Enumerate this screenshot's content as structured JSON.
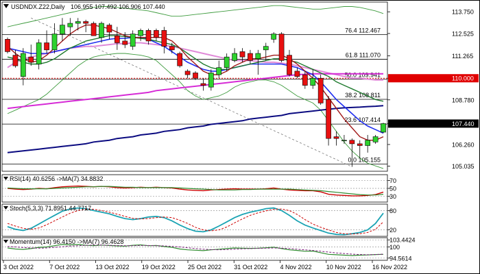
{
  "chart_data": [
    {
      "type": "candlestick",
      "title": "USDNDX.Z22,Daily",
      "ohlc_header": "106.955 107.492 106.906 107.440",
      "y_ticks": [
        "113.750",
        "112.525",
        "111.265",
        "110.000",
        "108.780",
        "107.440",
        "106.260",
        "105.035"
      ],
      "ylim": [
        104.75,
        114.3
      ],
      "last_price": "107.440",
      "highlight_level": "110.000",
      "x_labels": [
        "3 Oct 2022",
        "7 Oct 2022",
        "13 Oct 2022",
        "19 Oct 2022",
        "25 Oct 2022",
        "31 Oct 2022",
        "4 Nov 2022",
        "10 Nov 2022",
        "16 Nov 2022"
      ],
      "fib_levels": [
        {
          "label": "76.4 112.467",
          "value": 112.467
        },
        {
          "label": "61.8 111.070",
          "value": 111.07
        },
        {
          "label": "50.0 109.941",
          "value": 109.941
        },
        {
          "label": "38.2 108.811",
          "value": 108.811
        },
        {
          "label": "23.6 107.414",
          "value": 107.414
        },
        {
          "label": "0.0 105.155",
          "value": 105.155
        }
      ],
      "candles": [
        [
          112.2,
          112.3,
          111.4,
          111.5
        ],
        [
          111.3,
          111.6,
          110.6,
          110.7
        ],
        [
          110.1,
          111.7,
          109.6,
          111.4
        ],
        [
          111.2,
          111.9,
          110.7,
          110.9
        ],
        [
          110.8,
          112.2,
          110.5,
          112.0
        ],
        [
          112.0,
          112.7,
          111.4,
          111.6
        ],
        [
          111.6,
          113.1,
          111.4,
          112.5
        ],
        [
          112.5,
          113.4,
          112.1,
          113.0
        ],
        [
          112.9,
          113.4,
          112.4,
          113.1
        ],
        [
          113.1,
          113.4,
          112.7,
          113.2
        ],
        [
          113.2,
          113.3,
          112.6,
          113.1
        ],
        [
          113.1,
          113.2,
          112.4,
          112.4
        ],
        [
          112.3,
          113.2,
          112.0,
          113.1
        ],
        [
          113.0,
          113.1,
          112.2,
          112.6
        ],
        [
          112.4,
          112.9,
          111.6,
          112.0
        ],
        [
          112.1,
          112.6,
          111.7,
          111.9
        ],
        [
          111.8,
          112.7,
          111.6,
          112.5
        ],
        [
          112.4,
          112.8,
          112.1,
          112.7
        ],
        [
          112.7,
          112.8,
          111.9,
          112.1
        ],
        [
          112.7,
          112.8,
          112.1,
          112.3
        ],
        [
          112.7,
          112.9,
          111.4,
          111.8
        ],
        [
          111.8,
          112.0,
          111.4,
          111.6
        ],
        [
          111.4,
          111.5,
          110.6,
          110.7
        ],
        [
          110.4,
          110.5,
          110.0,
          110.2
        ],
        [
          110.3,
          110.4,
          109.9,
          110.0
        ],
        [
          109.7,
          110.0,
          109.3,
          109.6
        ],
        [
          109.5,
          110.5,
          109.3,
          110.3
        ],
        [
          110.2,
          111.0,
          110.0,
          110.6
        ],
        [
          110.6,
          111.4,
          110.4,
          111.2
        ],
        [
          111.0,
          111.7,
          110.9,
          111.4
        ],
        [
          111.5,
          111.7,
          110.9,
          111.2
        ],
        [
          111.4,
          111.6,
          110.8,
          111.0
        ],
        [
          111.1,
          111.6,
          110.2,
          111.4
        ],
        [
          111.6,
          112.0,
          111.0,
          111.8
        ],
        [
          112.2,
          112.6,
          112.0,
          112.5
        ],
        [
          112.5,
          112.6,
          110.9,
          111.0
        ],
        [
          111.3,
          111.6,
          110.1,
          110.2
        ],
        [
          110.4,
          110.6,
          110.0,
          110.1
        ],
        [
          110.2,
          110.4,
          109.4,
          109.6
        ],
        [
          109.6,
          110.5,
          109.4,
          110.0
        ],
        [
          110.0,
          110.2,
          108.5,
          108.6
        ],
        [
          108.8,
          109.0,
          106.2,
          106.6
        ],
        [
          106.7,
          107.0,
          106.2,
          106.6
        ],
        [
          106.5,
          106.8,
          106.3,
          106.5
        ],
        [
          106.5,
          106.6,
          105.0,
          106.3
        ],
        [
          106.3,
          106.5,
          105.5,
          106.2
        ],
        [
          106.2,
          106.8,
          105.8,
          106.5
        ],
        [
          106.4,
          106.8,
          106.3,
          106.7
        ],
        [
          106.955,
          107.492,
          106.906,
          107.44
        ]
      ],
      "overlays": {
        "ma_pink": [
          110.6,
          110.9,
          111.1,
          111.2,
          111.3,
          111.4,
          111.5,
          111.6,
          111.7,
          111.75,
          111.8,
          111.8,
          111.85,
          111.9,
          111.95,
          111.95,
          112.0,
          112.0,
          111.95,
          111.9,
          111.85,
          111.8,
          111.7,
          111.6,
          111.5,
          111.4,
          111.3,
          111.2,
          111.1,
          111.0,
          111.0,
          111.0,
          110.95,
          110.9,
          110.9,
          110.85,
          110.8,
          110.7,
          110.6,
          110.5,
          110.4,
          110.3,
          110.2,
          110.1,
          110.0,
          110.0,
          109.95,
          109.9,
          109.9
        ],
        "ma_magenta": [
          108.3,
          108.35,
          108.4,
          108.45,
          108.5,
          108.55,
          108.6,
          108.65,
          108.7,
          108.75,
          108.8,
          108.85,
          108.9,
          108.95,
          109.0,
          109.05,
          109.1,
          109.15,
          109.2,
          109.3,
          109.35,
          109.4,
          109.45,
          109.5,
          109.55,
          109.6,
          109.65,
          109.7,
          109.75,
          109.8,
          109.85,
          109.9,
          109.95,
          110.0,
          110.05,
          110.1,
          110.15,
          110.2,
          110.22,
          110.25,
          110.25,
          110.25,
          110.25,
          110.25,
          110.25,
          110.25,
          110.25,
          110.25,
          110.25
        ],
        "ma_navy": [
          105.8,
          105.85,
          105.9,
          105.95,
          106.0,
          106.05,
          106.1,
          106.15,
          106.2,
          106.25,
          106.3,
          106.4,
          106.45,
          106.5,
          106.6,
          106.65,
          106.7,
          106.8,
          106.85,
          106.9,
          107.0,
          107.05,
          107.1,
          107.2,
          107.25,
          107.3,
          107.4,
          107.45,
          107.5,
          107.55,
          107.6,
          107.7,
          107.75,
          107.8,
          107.85,
          107.9,
          108.0,
          108.05,
          108.1,
          108.15,
          108.2,
          108.25,
          108.3,
          108.33,
          108.35,
          108.37,
          108.4,
          108.42,
          108.45
        ],
        "ma_blue": [
          111.7,
          111.6,
          111.5,
          111.4,
          111.4,
          111.4,
          111.5,
          111.6,
          111.7,
          111.8,
          111.9,
          112.0,
          112.1,
          112.2,
          112.25,
          112.25,
          112.3,
          112.3,
          112.2,
          112.0,
          111.8,
          111.5,
          111.2,
          110.9,
          110.7,
          110.5,
          110.4,
          110.4,
          110.5,
          110.6,
          110.7,
          110.8,
          110.8,
          110.8,
          110.8,
          110.8,
          110.7,
          110.6,
          110.4,
          110.2,
          109.8,
          109.3,
          108.8,
          108.4,
          108.0,
          107.6,
          107.3,
          107.1,
          106.9
        ],
        "ma_green": [
          111.2,
          111.1,
          110.9,
          110.8,
          110.8,
          110.9,
          111.1,
          111.4,
          111.7,
          111.9,
          112.1,
          112.2,
          112.3,
          112.4,
          112.4,
          112.35,
          112.3,
          112.25,
          112.2,
          112.1,
          112.0,
          111.9,
          111.7,
          111.4,
          111.1,
          110.8,
          110.6,
          110.5,
          110.5,
          110.6,
          110.7,
          110.8,
          110.9,
          111.0,
          111.1,
          111.1,
          111.0,
          110.9,
          110.7,
          110.5,
          110.3,
          110.1,
          109.8,
          109.6,
          109.4,
          109.2,
          109.0,
          108.8,
          108.7
        ],
        "ma_brown": [
          111.8,
          111.4,
          111.1,
          110.9,
          111.0,
          111.3,
          111.7,
          112.1,
          112.5,
          112.8,
          113.0,
          113.0,
          112.9,
          112.8,
          112.6,
          112.4,
          112.3,
          112.3,
          112.3,
          112.3,
          112.3,
          112.1,
          111.7,
          111.2,
          110.8,
          110.4,
          110.2,
          110.2,
          110.4,
          110.7,
          110.9,
          111.1,
          111.1,
          111.2,
          111.3,
          111.3,
          111.1,
          110.8,
          110.4,
          110.0,
          109.5,
          108.9,
          108.3,
          107.7,
          107.2,
          106.7,
          106.5,
          106.5,
          106.7
        ],
        "bb_upper": [
          112.9,
          113.0,
          113.1,
          113.2,
          113.3,
          113.4,
          113.5,
          113.6,
          113.7,
          113.8,
          113.9,
          114.0,
          114.05,
          114.05,
          114.0,
          113.95,
          113.9,
          113.85,
          113.8,
          113.7,
          113.6,
          113.5,
          113.5,
          113.55,
          113.6,
          113.65,
          113.7,
          113.75,
          113.8,
          113.85,
          113.9,
          113.95,
          114.0,
          114.05,
          114.1,
          114.1,
          114.05,
          114.0,
          113.95,
          113.9,
          113.9,
          113.95,
          114.0,
          114.05,
          114.05,
          114.0,
          113.9,
          113.8,
          113.65
        ],
        "bb_lower": [
          108.0,
          108.2,
          108.4,
          108.6,
          108.8,
          109.1,
          109.5,
          109.9,
          110.3,
          110.7,
          111.0,
          111.2,
          111.3,
          111.35,
          111.4,
          111.4,
          111.35,
          111.3,
          111.2,
          111.0,
          110.6,
          110.2,
          109.8,
          109.3,
          109.0,
          108.8,
          108.9,
          109.0,
          109.2,
          109.5,
          109.7,
          109.8,
          109.9,
          109.9,
          109.8,
          109.6,
          109.3,
          109.0,
          108.8,
          108.6,
          108.2,
          107.6,
          107.0,
          106.4,
          105.9,
          105.5,
          105.2,
          105.05,
          104.9
        ]
      }
    },
    {
      "type": "line",
      "title": "RSI(14) 40.6256 ->MA(7) 34.8832",
      "y_ticks": [
        "70",
        "50",
        "30"
      ],
      "ylim": [
        15,
        85
      ],
      "series": [
        {
          "name": "RSI",
          "values": [
            50,
            48,
            47,
            48,
            50,
            49,
            52,
            54,
            55,
            56,
            55,
            54,
            55,
            54,
            52,
            51,
            52,
            53,
            52,
            53,
            52,
            51,
            48,
            46,
            45,
            44,
            46,
            47,
            48,
            49,
            48,
            48,
            48,
            49,
            51,
            48,
            46,
            45,
            44,
            44,
            41,
            35,
            33,
            32,
            31,
            31,
            32,
            34,
            40.6
          ]
        },
        {
          "name": "MA(7)",
          "values": [
            51,
            50,
            49,
            49,
            49,
            49,
            50,
            51,
            52,
            53,
            54,
            54,
            55,
            55,
            54,
            53,
            53,
            52,
            52,
            52,
            52,
            52,
            51,
            50,
            49,
            48,
            47,
            46,
            46,
            46,
            47,
            47,
            48,
            48,
            48,
            48,
            48,
            47,
            46,
            45,
            44,
            42,
            40,
            38,
            36,
            34,
            33,
            33,
            34.9
          ]
        }
      ]
    },
    {
      "type": "line",
      "title": "Stoch(5,3,3) 71.8951 44.7717",
      "y_ticks": [
        "80",
        "20"
      ],
      "ylim": [
        0,
        100
      ],
      "series": [
        {
          "name": "%K",
          "values": [
            30,
            22,
            18,
            25,
            38,
            52,
            65,
            78,
            85,
            88,
            86,
            80,
            75,
            70,
            62,
            55,
            52,
            55,
            60,
            62,
            58,
            48,
            35,
            24,
            16,
            14,
            20,
            32,
            45,
            58,
            68,
            75,
            80,
            86,
            88,
            80,
            65,
            48,
            35,
            26,
            18,
            10,
            6,
            5,
            8,
            12,
            20,
            40,
            71.9
          ]
        },
        {
          "name": "%D",
          "values": [
            40,
            32,
            25,
            22,
            26,
            36,
            48,
            60,
            72,
            80,
            85,
            84,
            80,
            75,
            69,
            62,
            56,
            54,
            55,
            58,
            60,
            58,
            50,
            40,
            28,
            20,
            17,
            20,
            29,
            42,
            54,
            65,
            73,
            79,
            84,
            85,
            80,
            68,
            52,
            38,
            28,
            20,
            12,
            8,
            7,
            8,
            12,
            22,
            44.8
          ]
        }
      ]
    },
    {
      "type": "line",
      "title": "Momentum(14) 96.4150 ->MA(7) 96.4628",
      "y_ticks": [
        "103.4424",
        "100",
        "94.5614"
      ],
      "ylim": [
        93.5,
        104.5
      ],
      "series": [
        {
          "name": "Momentum",
          "values": [
            99.5,
            99.0,
            98.8,
            99.2,
            99.8,
            100.0,
            100.6,
            101.2,
            101.0,
            101.2,
            100.8,
            100.6,
            100.9,
            100.7,
            100.5,
            100.4,
            100.8,
            101.0,
            100.6,
            100.7,
            100.2,
            99.8,
            99.0,
            98.6,
            98.4,
            98.2,
            98.6,
            98.9,
            99.2,
            99.5,
            99.4,
            99.3,
            99.4,
            99.6,
            99.9,
            99.2,
            98.6,
            98.3,
            97.9,
            98.0,
            97.2,
            96.4,
            96.2,
            96.0,
            95.8,
            96.0,
            96.1,
            96.3,
            96.4
          ]
        },
        {
          "name": "MA(7)",
          "values": [
            100.2,
            100.0,
            99.7,
            99.5,
            99.4,
            99.5,
            99.8,
            100.1,
            100.4,
            100.6,
            100.8,
            100.9,
            100.9,
            100.8,
            100.7,
            100.6,
            100.6,
            100.7,
            100.7,
            100.6,
            100.5,
            100.3,
            100.0,
            99.6,
            99.2,
            98.9,
            98.7,
            98.6,
            98.7,
            98.9,
            99.1,
            99.2,
            99.3,
            99.4,
            99.5,
            99.4,
            99.2,
            98.9,
            98.6,
            98.3,
            97.9,
            97.5,
            97.1,
            96.8,
            96.5,
            96.3,
            96.2,
            96.3,
            96.46
          ]
        }
      ]
    }
  ]
}
